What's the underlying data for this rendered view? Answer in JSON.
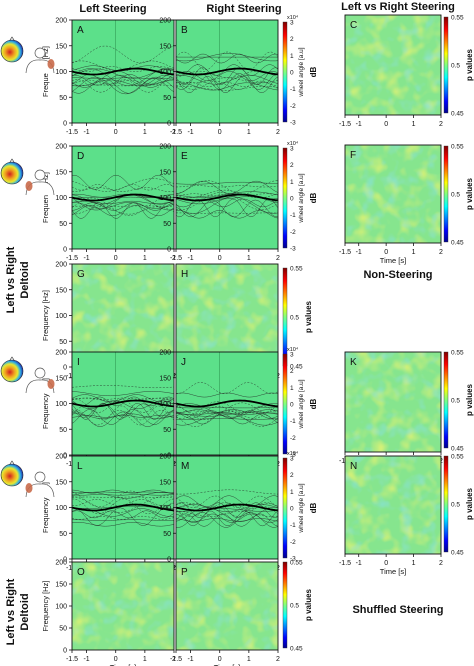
{
  "columns": {
    "left": "Left Steering",
    "right": "Right Steering",
    "compare": "Left vs Right Steering"
  },
  "sections": {
    "non_steering": "Non-Steering",
    "shuffled_steering": "Shuffled Steering"
  },
  "side_label": {
    "line1": "Left vs Right",
    "line2": "Deltoid"
  },
  "axes": {
    "frequency_label": "Frequency [Hz]",
    "time_label": "Time [s]",
    "x_ticks": [
      "-1.5",
      "-1",
      "0",
      "1",
      "2"
    ],
    "y_ticks": [
      "200",
      "150",
      "100",
      "50",
      "0"
    ],
    "wheel_label": "wheel angle [a.u]",
    "wheel_ticks": [
      "3",
      "2",
      "1",
      "0",
      "-1",
      "-2",
      "-3"
    ],
    "wheel_exp": "x10⁴",
    "db_label": "dB",
    "p_label": "p values",
    "p_ticks": [
      "0.55",
      "0.5",
      "0.45"
    ]
  },
  "panel_letters": [
    "A",
    "B",
    "C",
    "D",
    "E",
    "F",
    "G",
    "H",
    "I",
    "J",
    "K",
    "L",
    "M",
    "N",
    "O",
    "P"
  ],
  "colors": {
    "green": "#5ce08a",
    "steer_lines": "#222222",
    "electrode_red": "#d8382c",
    "electrode_blue": "#2a49c8",
    "deltoid": "#c96a4a"
  },
  "icons": [
    "eeg-topography-icon",
    "shoulder-deltoid-icon"
  ]
}
